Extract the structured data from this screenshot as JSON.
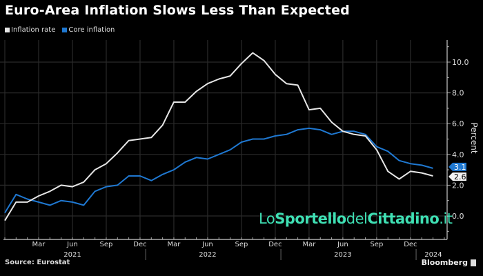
{
  "header": {
    "title": "Euro-Area Inflation Slows Less Than Expected"
  },
  "footer": {
    "source": "Source: Eurostat",
    "brand": "Bloomberg"
  },
  "watermark": {
    "part1": "Lo",
    "part2": "Sportello",
    "part3": "del",
    "part4": "Cittadino",
    "part5": ".it"
  },
  "chart_data": {
    "type": "line",
    "title": "Euro-Area Inflation Slows Less Than Expected",
    "ylabel": "Percent",
    "xlabel": "",
    "x": [
      "2020-12",
      "2021-01",
      "2021-02",
      "2021-03",
      "2021-04",
      "2021-05",
      "2021-06",
      "2021-07",
      "2021-08",
      "2021-09",
      "2021-10",
      "2021-11",
      "2021-12",
      "2022-01",
      "2022-02",
      "2022-03",
      "2022-04",
      "2022-05",
      "2022-06",
      "2022-07",
      "2022-08",
      "2022-09",
      "2022-10",
      "2022-11",
      "2022-12",
      "2023-01",
      "2023-02",
      "2023-03",
      "2023-04",
      "2023-05",
      "2023-06",
      "2023-07",
      "2023-08",
      "2023-09",
      "2023-10",
      "2023-11",
      "2023-12",
      "2024-01",
      "2024-02"
    ],
    "series": [
      {
        "name": "Inflation rate",
        "color": "#e6e6e6",
        "end_label": "2.6",
        "values": [
          -0.3,
          0.9,
          0.9,
          1.3,
          1.6,
          2.0,
          1.9,
          2.2,
          3.0,
          3.4,
          4.1,
          4.9,
          5.0,
          5.1,
          5.9,
          7.4,
          7.4,
          8.1,
          8.6,
          8.9,
          9.1,
          9.9,
          10.6,
          10.1,
          9.2,
          8.6,
          8.5,
          6.9,
          7.0,
          6.1,
          5.5,
          5.3,
          5.2,
          4.3,
          2.9,
          2.4,
          2.9,
          2.8,
          2.6
        ]
      },
      {
        "name": "Core inflation",
        "color": "#1f78d1",
        "end_label": "3.1",
        "values": [
          0.2,
          1.4,
          1.1,
          0.9,
          0.7,
          1.0,
          0.9,
          0.7,
          1.6,
          1.9,
          2.0,
          2.6,
          2.6,
          2.3,
          2.7,
          3.0,
          3.5,
          3.8,
          3.7,
          4.0,
          4.3,
          4.8,
          5.0,
          5.0,
          5.2,
          5.3,
          5.6,
          5.7,
          5.6,
          5.3,
          5.5,
          5.5,
          5.3,
          4.5,
          4.2,
          3.6,
          3.4,
          3.3,
          3.1
        ]
      }
    ],
    "ylim": [
      -1.4,
      11.4
    ],
    "yticks": [
      "0.0",
      "2.0",
      "4.0",
      "6.0",
      "8.0",
      "10.0"
    ],
    "ytick_values": [
      0,
      2,
      4,
      6,
      8,
      10
    ],
    "xtick_labels": [
      {
        "month": "2021-03",
        "label": "Mar"
      },
      {
        "month": "2021-06",
        "label": "Jun"
      },
      {
        "month": "2021-09",
        "label": "Sep"
      },
      {
        "month": "2021-12",
        "label": "Dec"
      },
      {
        "month": "2022-03",
        "label": "Mar"
      },
      {
        "month": "2022-06",
        "label": "Jun"
      },
      {
        "month": "2022-09",
        "label": "Sep"
      },
      {
        "month": "2022-12",
        "label": "Dec"
      },
      {
        "month": "2023-03",
        "label": "Mar"
      },
      {
        "month": "2023-06",
        "label": "Jun"
      },
      {
        "month": "2023-09",
        "label": "Sep"
      },
      {
        "month": "2023-12",
        "label": "Dec"
      }
    ],
    "years": [
      {
        "label": "2021",
        "center": "2021-06"
      },
      {
        "label": "2022",
        "center": "2022-06"
      },
      {
        "label": "2023",
        "center": "2023-06"
      },
      {
        "label": "2024",
        "center": "2024-01"
      }
    ],
    "grid": true,
    "legend": "top-left",
    "background": "#000000"
  }
}
